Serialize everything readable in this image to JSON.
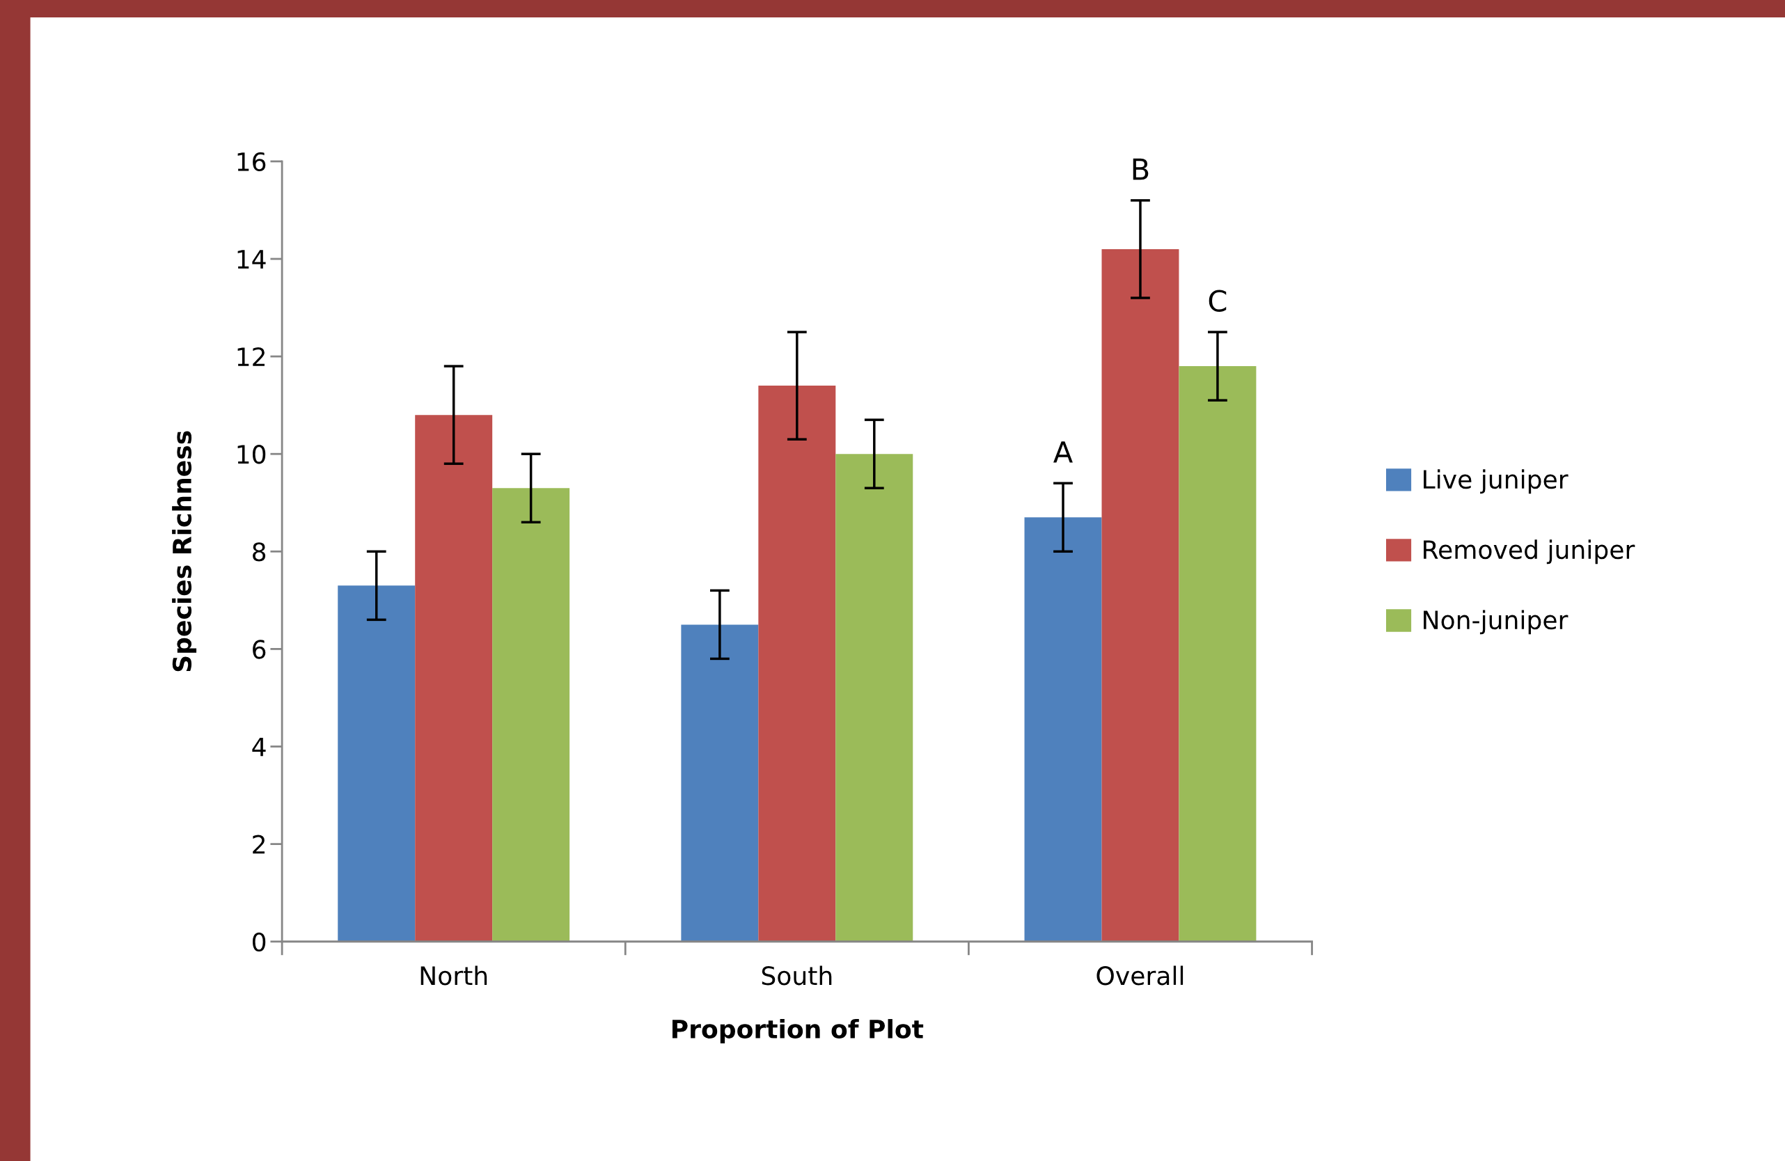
{
  "chart_data": {
    "type": "bar",
    "xlabel": "Proportion of Plot",
    "ylabel": "Species Richness",
    "categories": [
      "North",
      "South",
      "Overall"
    ],
    "series": [
      {
        "name": "Live juniper",
        "color": "#4f81bd",
        "values": [
          7.3,
          6.5,
          8.7
        ],
        "errors": [
          0.7,
          0.7,
          0.7
        ]
      },
      {
        "name": "Removed juniper",
        "color": "#c0504d",
        "values": [
          10.8,
          11.4,
          14.2
        ],
        "errors": [
          1.0,
          1.1,
          1.0
        ]
      },
      {
        "name": "Non-juniper",
        "color": "#9bbb59",
        "values": [
          9.3,
          10.0,
          11.8
        ],
        "errors": [
          0.7,
          0.7,
          0.7
        ]
      }
    ],
    "ylim": [
      0,
      16
    ],
    "yticks": [
      0,
      2,
      4,
      6,
      8,
      10,
      12,
      14,
      16
    ],
    "grid": false,
    "legend": "right",
    "annotations": [
      "A",
      "B",
      "C"
    ]
  }
}
